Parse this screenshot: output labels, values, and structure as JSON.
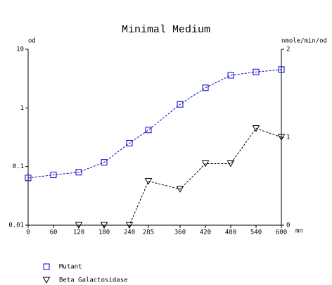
{
  "chart_data": {
    "type": "line",
    "title": "Minimal Medium",
    "y_label": "od",
    "y2_label": "nmole/min/od",
    "x_label": "mn",
    "x": [
      0,
      60,
      120,
      180,
      240,
      285,
      360,
      420,
      480,
      540,
      600
    ],
    "xlim": [
      0,
      600
    ],
    "xticks": [
      0,
      60,
      120,
      180,
      240,
      285,
      360,
      420,
      480,
      540,
      600
    ],
    "ylim": [
      0.01,
      10
    ],
    "yticks": [
      0.01,
      0.1,
      1,
      10
    ],
    "y_log": true,
    "y2lim": [
      0,
      2
    ],
    "y2ticks": [
      0,
      1,
      2
    ],
    "series": [
      {
        "name": "Mutant",
        "color": "#0000cc",
        "marker": "square",
        "values": [
          0.064,
          0.072,
          0.08,
          0.118,
          0.25,
          0.42,
          1.15,
          2.2,
          3.6,
          4.1,
          4.5
        ]
      },
      {
        "name": "Beta Galactosidase",
        "color": "#000000",
        "marker": "triangle",
        "axis": "y2",
        "values": [
          null,
          null,
          0,
          0,
          0,
          0.5,
          0.41,
          0.7,
          0.7,
          1.1,
          1.0
        ]
      }
    ]
  }
}
